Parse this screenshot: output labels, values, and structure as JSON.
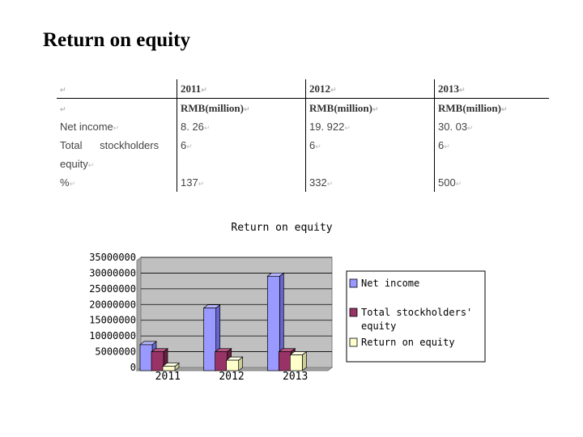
{
  "slide": {
    "title": "Return on equity"
  },
  "table": {
    "header": [
      "",
      "2011",
      "2012",
      "2013"
    ],
    "units": [
      "",
      "RMB(million)",
      "RMB(million)",
      "RMB(million)"
    ],
    "rows": [
      [
        "Net income",
        "8. 26",
        "19. 922",
        "30. 03"
      ],
      [
        "Total      stockholders",
        "6",
        "6",
        "6"
      ],
      [
        "equity",
        "",
        "",
        ""
      ],
      [
        "%",
        "137",
        "332",
        "500"
      ]
    ],
    "para_mark": "↵"
  },
  "chart_data": {
    "type": "bar",
    "title": "Return on equity",
    "categories": [
      "2011",
      "2012",
      "2013"
    ],
    "series": [
      {
        "name": "Net income",
        "values": [
          8260000,
          19922000,
          30030000
        ]
      },
      {
        "name": "Total stockholders' equity",
        "values": [
          6000000,
          6000000,
          6000000
        ]
      },
      {
        "name": "Return on equity",
        "values": [
          1370000,
          3320000,
          5000000
        ]
      }
    ],
    "ylim": [
      0,
      35000000
    ],
    "yticks": [
      "35000000",
      "30000000",
      "25000000",
      "20000000",
      "15000000",
      "10000000",
      "5000000",
      "0"
    ],
    "legend": "right",
    "grid": true,
    "colors": [
      "#9999ff",
      "#993366",
      "#ffffcc"
    ],
    "side_colors": [
      "#6666cc",
      "#66203f",
      "#cccc99"
    ],
    "top_colors": [
      "#b8b8ff",
      "#b35280",
      "#ffffe8"
    ],
    "wall_color": "#c0c0c0"
  }
}
